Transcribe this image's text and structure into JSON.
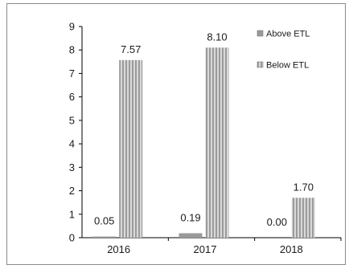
{
  "chart_data": {
    "type": "bar",
    "title": "",
    "xlabel": "",
    "ylabel": "",
    "categories": [
      "2016",
      "2017",
      "2018"
    ],
    "series": [
      {
        "name": "Above ETL",
        "values": [
          0.05,
          0.19,
          0.0
        ],
        "labels": [
          "0.05",
          "0.19",
          "0.00"
        ],
        "color": "#9a9a9a"
      },
      {
        "name": "Below ETL",
        "values": [
          7.57,
          8.1,
          1.7
        ],
        "labels": [
          "7.57",
          "8.10",
          "1.70"
        ],
        "color": "#b8b8b8",
        "pattern": "vertical-stripes"
      }
    ],
    "ylim": [
      0,
      9
    ],
    "yticks": [
      0,
      1,
      2,
      3,
      4,
      5,
      6,
      7,
      8,
      9
    ],
    "grid": false,
    "legend": {
      "placement": "top-right"
    },
    "colors": {
      "axis": "#000000",
      "frame": "#8a8a8a",
      "stripe_dark": "#9b9b9b",
      "stripe_light": "#d9d9d9"
    }
  }
}
